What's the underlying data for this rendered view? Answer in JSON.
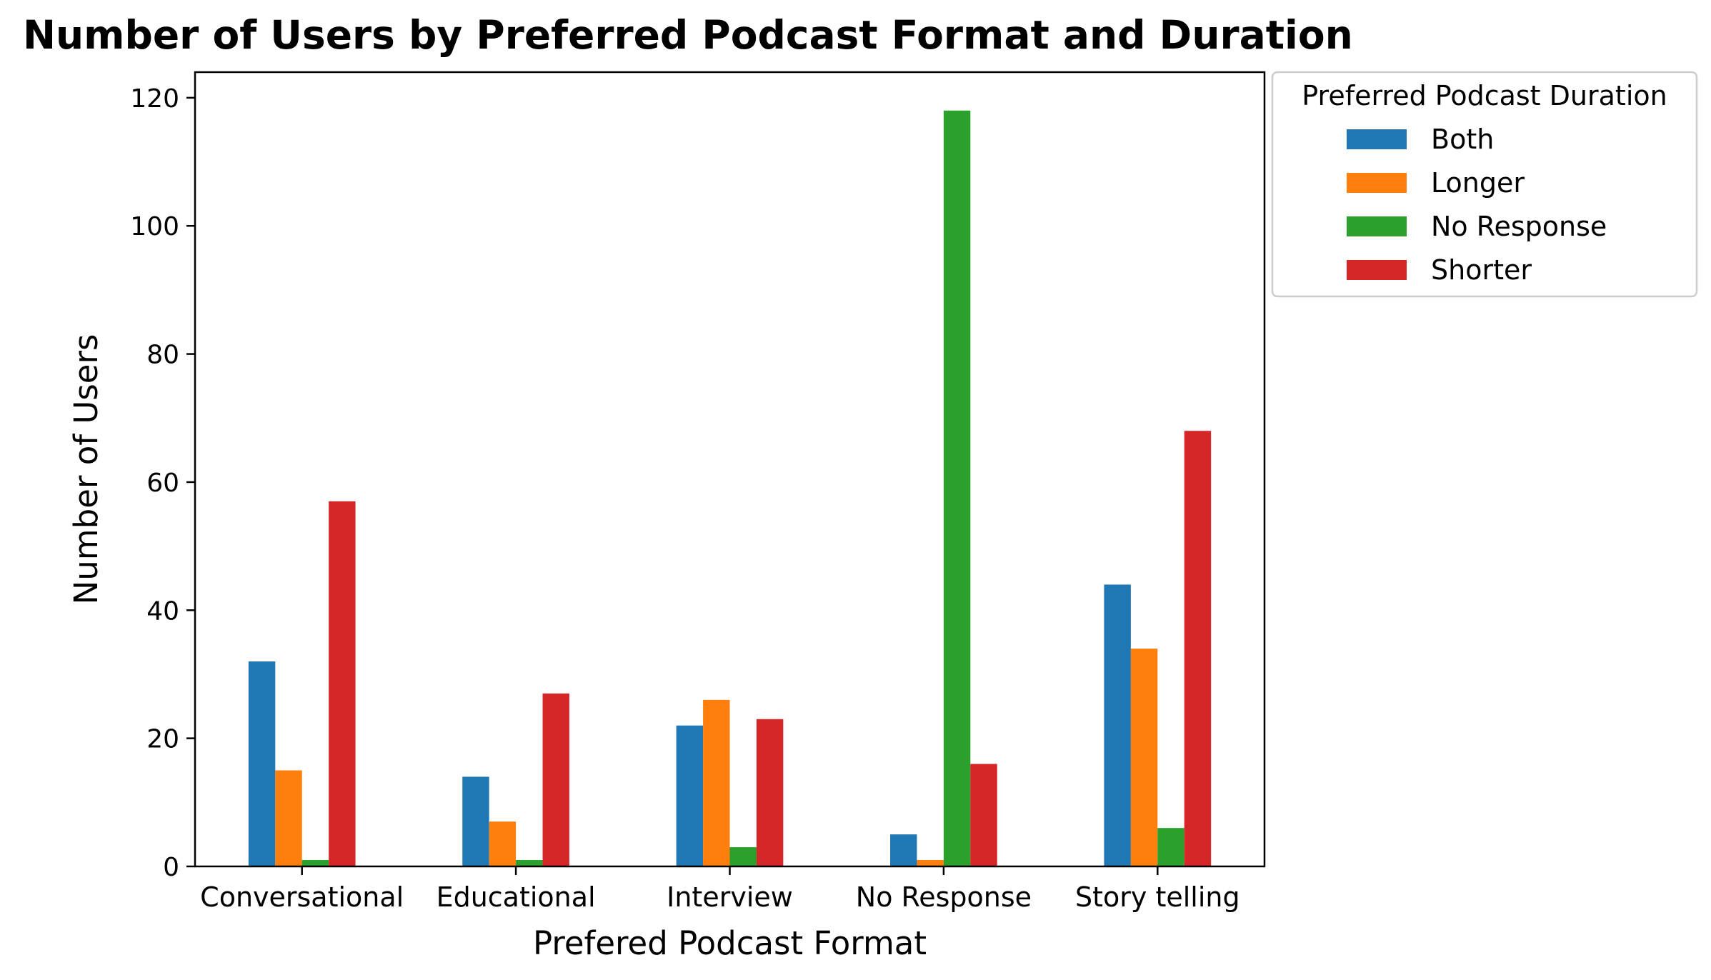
{
  "chart_data": {
    "type": "bar",
    "title": "Number of Users by Preferred Podcast Format and Duration",
    "xlabel": "Prefered Podcast Format",
    "ylabel": "Number of Users",
    "categories": [
      "Conversational",
      "Educational",
      "Interview",
      "No Response",
      "Story telling"
    ],
    "series": [
      {
        "name": "Both",
        "color": "#1f77b4",
        "values": [
          32,
          14,
          22,
          5,
          44
        ]
      },
      {
        "name": "Longer",
        "color": "#ff7f0e",
        "values": [
          15,
          7,
          26,
          1,
          34
        ]
      },
      {
        "name": "No Response",
        "color": "#2ca02c",
        "values": [
          1,
          1,
          3,
          118,
          6
        ]
      },
      {
        "name": "Shorter",
        "color": "#d62728",
        "values": [
          57,
          27,
          23,
          16,
          68
        ]
      }
    ],
    "ylim": [
      0,
      124
    ],
    "yticks": [
      0,
      20,
      40,
      60,
      80,
      100,
      120
    ],
    "legend": {
      "title": "Preferred Podcast Duration",
      "placement": "outside-top-right"
    },
    "grid": false
  }
}
